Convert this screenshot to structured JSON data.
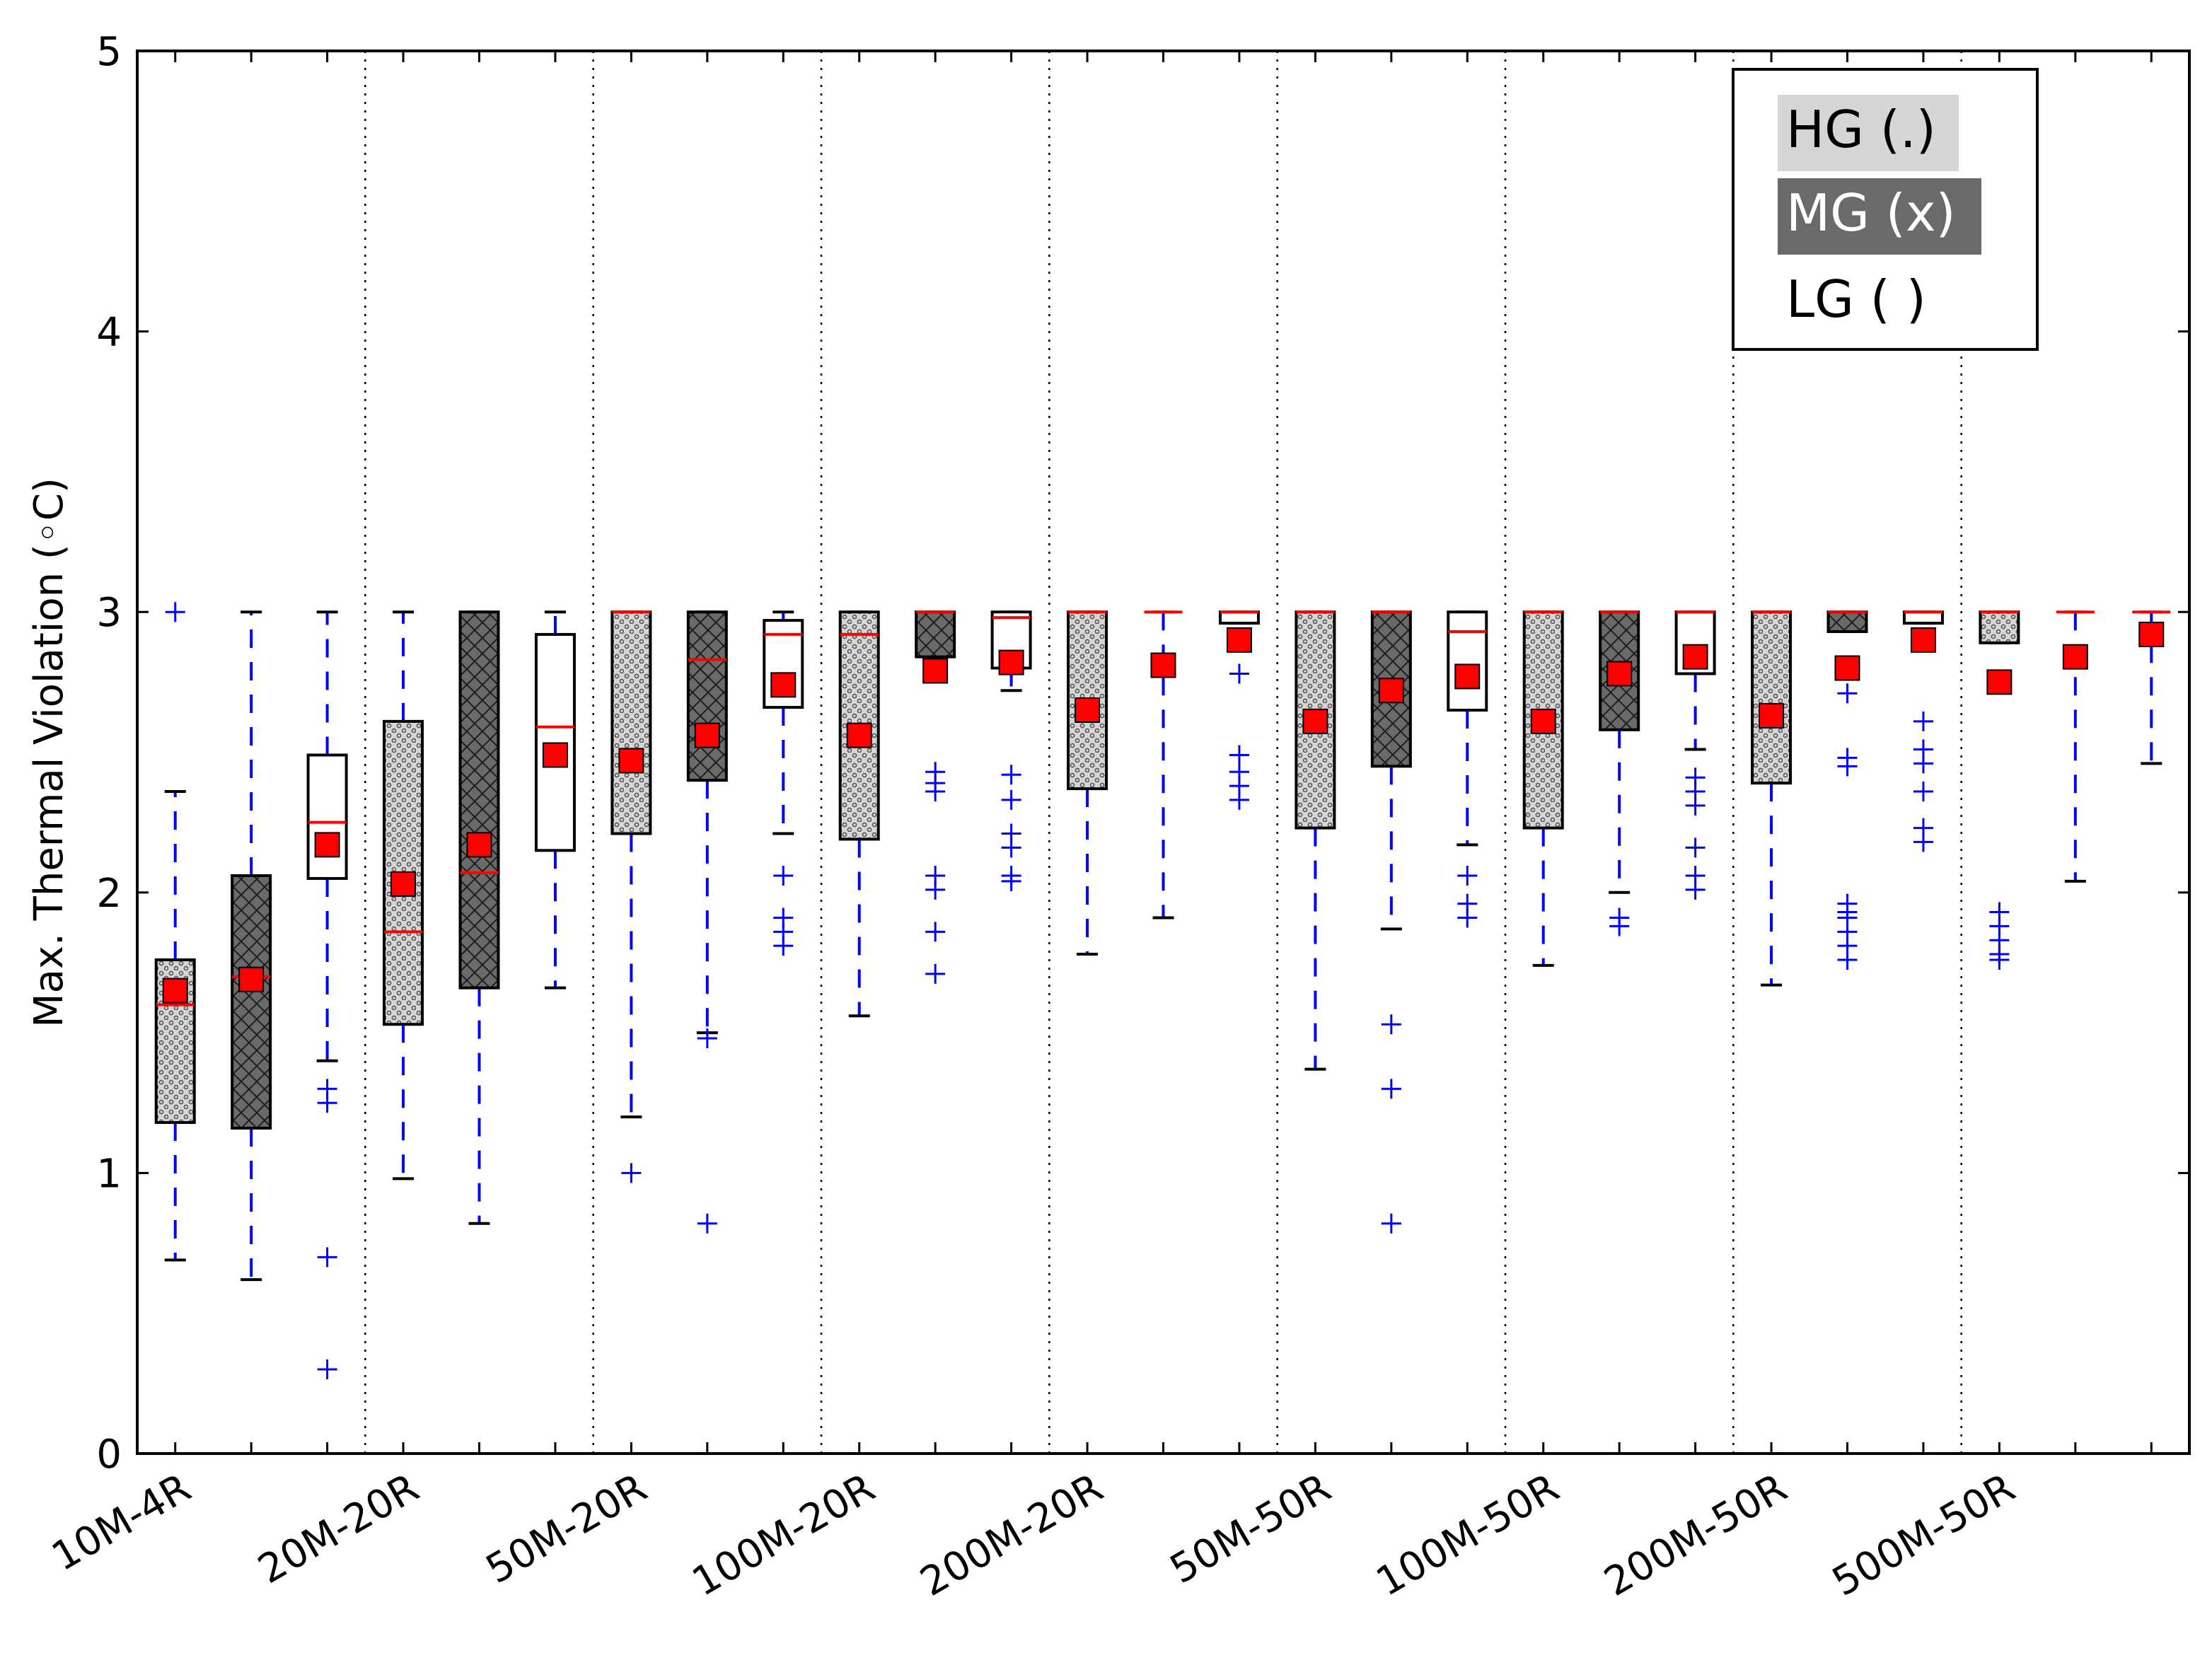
{
  "chart_data": {
    "type": "box",
    "ylabel": "Max. Thermal Violation (◦C)",
    "ylim": [
      0,
      5
    ],
    "yticks": [
      "0",
      "1",
      "2",
      "3",
      "4",
      "5"
    ],
    "categories": [
      "10M-4R",
      "20M-20R",
      "50M-20R",
      "100M-20R",
      "200M-20R",
      "50M-50R",
      "100M-50R",
      "200M-50R",
      "500M-50R"
    ],
    "series": [
      {
        "name": "HG (.)",
        "fill": "#d6d6d6",
        "pattern": "dots"
      },
      {
        "name": "MG (x)",
        "fill": "#6a6a6a",
        "pattern": "crosshatch"
      },
      {
        "name": "LG ( )",
        "fill": "#ffffff",
        "pattern": "none"
      }
    ],
    "legend_position": "top-right",
    "grid": "vertical dotted separators between categories",
    "boxes": [
      {
        "category": "10M-4R",
        "series": "HG (.)",
        "q1": 1.18,
        "q3": 1.76,
        "median": 1.6,
        "mean": 1.65,
        "whisker_low": 0.69,
        "whisker_high": 2.36,
        "outliers": [
          3.0
        ]
      },
      {
        "category": "10M-4R",
        "series": "MG (x)",
        "q1": 1.16,
        "q3": 2.06,
        "median": 1.7,
        "mean": 1.69,
        "whisker_low": 0.62,
        "whisker_high": 3.0,
        "outliers": []
      },
      {
        "category": "10M-4R",
        "series": "LG ( )",
        "q1": 2.05,
        "q3": 2.49,
        "median": 2.25,
        "mean": 2.17,
        "whisker_low": 1.4,
        "whisker_high": 3.0,
        "outliers": [
          1.3,
          1.25,
          0.7,
          0.3
        ]
      },
      {
        "category": "20M-20R",
        "series": "HG (.)",
        "q1": 1.53,
        "q3": 2.61,
        "median": 1.86,
        "mean": 2.03,
        "whisker_low": 0.98,
        "whisker_high": 3.0,
        "outliers": []
      },
      {
        "category": "20M-20R",
        "series": "MG (x)",
        "q1": 1.66,
        "q3": 3.0,
        "median": 2.07,
        "mean": 2.17,
        "whisker_low": 0.82,
        "whisker_high": 3.0,
        "outliers": []
      },
      {
        "category": "20M-20R",
        "series": "LG ( )",
        "q1": 2.15,
        "q3": 2.92,
        "median": 2.59,
        "mean": 2.49,
        "whisker_low": 1.66,
        "whisker_high": 3.0,
        "outliers": []
      },
      {
        "category": "50M-20R",
        "series": "HG (.)",
        "q1": 2.21,
        "q3": 3.0,
        "median": 3.0,
        "mean": 2.47,
        "whisker_low": 1.2,
        "whisker_high": 3.0,
        "outliers": [
          1.0
        ]
      },
      {
        "category": "50M-20R",
        "series": "MG (x)",
        "q1": 2.4,
        "q3": 3.0,
        "median": 2.83,
        "mean": 2.56,
        "whisker_low": 1.5,
        "whisker_high": 3.0,
        "outliers": [
          1.48,
          0.82
        ]
      },
      {
        "category": "50M-20R",
        "series": "LG ( )",
        "q1": 2.66,
        "q3": 2.97,
        "median": 2.92,
        "mean": 2.74,
        "whisker_low": 2.21,
        "whisker_high": 3.0,
        "outliers": [
          2.06,
          1.91,
          1.86,
          1.81
        ]
      },
      {
        "category": "100M-20R",
        "series": "HG (.)",
        "q1": 2.19,
        "q3": 3.0,
        "median": 2.92,
        "mean": 2.56,
        "whisker_low": 1.56,
        "whisker_high": 3.0,
        "outliers": []
      },
      {
        "category": "100M-20R",
        "series": "MG (x)",
        "q1": 2.84,
        "q3": 3.0,
        "median": 3.0,
        "mean": 2.79,
        "whisker_low": 2.84,
        "whisker_high": 3.0,
        "outliers": [
          2.43,
          2.39,
          2.36,
          2.06,
          2.01,
          1.86,
          1.71
        ]
      },
      {
        "category": "100M-20R",
        "series": "LG ( )",
        "q1": 2.8,
        "q3": 3.0,
        "median": 2.98,
        "mean": 2.82,
        "whisker_low": 2.72,
        "whisker_high": 3.0,
        "outliers": [
          2.42,
          2.33,
          2.21,
          2.16,
          2.06,
          2.04
        ]
      },
      {
        "category": "200M-20R",
        "series": "HG (.)",
        "q1": 2.37,
        "q3": 3.0,
        "median": 3.0,
        "mean": 2.65,
        "whisker_low": 1.78,
        "whisker_high": 3.0,
        "outliers": []
      },
      {
        "category": "200M-20R",
        "series": "MG (x)",
        "q1": 3.0,
        "q3": 3.0,
        "median": 3.0,
        "mean": 2.81,
        "whisker_low": 1.91,
        "whisker_high": 3.0,
        "outliers": []
      },
      {
        "category": "200M-20R",
        "series": "LG ( )",
        "q1": 2.96,
        "q3": 3.0,
        "median": 3.0,
        "mean": 2.9,
        "whisker_low": 2.96,
        "whisker_high": 3.0,
        "outliers": [
          2.78,
          2.49,
          2.43,
          2.38,
          2.33
        ]
      },
      {
        "category": "50M-50R",
        "series": "HG (.)",
        "q1": 2.23,
        "q3": 3.0,
        "median": 3.0,
        "mean": 2.61,
        "whisker_low": 1.37,
        "whisker_high": 3.0,
        "outliers": []
      },
      {
        "category": "50M-50R",
        "series": "MG (x)",
        "q1": 2.45,
        "q3": 3.0,
        "median": 3.0,
        "mean": 2.72,
        "whisker_low": 1.87,
        "whisker_high": 3.0,
        "outliers": [
          1.53,
          1.3,
          0.82
        ]
      },
      {
        "category": "50M-50R",
        "series": "LG ( )",
        "q1": 2.65,
        "q3": 3.0,
        "median": 2.93,
        "mean": 2.77,
        "whisker_low": 2.17,
        "whisker_high": 3.0,
        "outliers": [
          2.06,
          1.96,
          1.91
        ]
      },
      {
        "category": "100M-50R",
        "series": "HG (.)",
        "q1": 2.23,
        "q3": 3.0,
        "median": 3.0,
        "mean": 2.61,
        "whisker_low": 1.74,
        "whisker_high": 3.0,
        "outliers": []
      },
      {
        "category": "100M-50R",
        "series": "MG (x)",
        "q1": 2.58,
        "q3": 3.0,
        "median": 3.0,
        "mean": 2.78,
        "whisker_low": 2.0,
        "whisker_high": 3.0,
        "outliers": [
          1.91,
          1.88
        ]
      },
      {
        "category": "100M-50R",
        "series": "LG ( )",
        "q1": 2.78,
        "q3": 3.0,
        "median": 3.0,
        "mean": 2.84,
        "whisker_low": 2.51,
        "whisker_high": 3.0,
        "outliers": [
          2.41,
          2.36,
          2.31,
          2.16,
          2.06,
          2.01
        ]
      },
      {
        "category": "200M-50R",
        "series": "HG (.)",
        "q1": 2.39,
        "q3": 3.0,
        "median": 3.0,
        "mean": 2.63,
        "whisker_low": 1.67,
        "whisker_high": 3.0,
        "outliers": []
      },
      {
        "category": "200M-50R",
        "series": "MG (x)",
        "q1": 2.93,
        "q3": 3.0,
        "median": 3.0,
        "mean": 2.8,
        "whisker_low": 2.93,
        "whisker_high": 3.0,
        "outliers": [
          2.71,
          2.48,
          2.45,
          1.96,
          1.93,
          1.91,
          1.86,
          1.81,
          1.76
        ]
      },
      {
        "category": "200M-50R",
        "series": "LG ( )",
        "q1": 2.96,
        "q3": 3.0,
        "median": 3.0,
        "mean": 2.9,
        "whisker_low": 2.96,
        "whisker_high": 3.0,
        "outliers": [
          2.91,
          2.61,
          2.51,
          2.46,
          2.36,
          2.23,
          2.18
        ]
      },
      {
        "category": "500M-50R",
        "series": "HG (.)",
        "q1": 2.89,
        "q3": 3.0,
        "median": 3.0,
        "mean": 2.75,
        "whisker_low": 2.89,
        "whisker_high": 3.0,
        "outliers": [
          1.93,
          1.88,
          1.83,
          1.78,
          1.76
        ]
      },
      {
        "category": "500M-50R",
        "series": "MG (x)",
        "q1": 3.0,
        "q3": 3.0,
        "median": 3.0,
        "mean": 2.84,
        "whisker_low": 2.04,
        "whisker_high": 3.0,
        "outliers": []
      },
      {
        "category": "500M-50R",
        "series": "LG ( )",
        "q1": 3.0,
        "q3": 3.0,
        "median": 3.0,
        "mean": 2.92,
        "whisker_low": 2.46,
        "whisker_high": 3.0,
        "outliers": []
      }
    ]
  }
}
